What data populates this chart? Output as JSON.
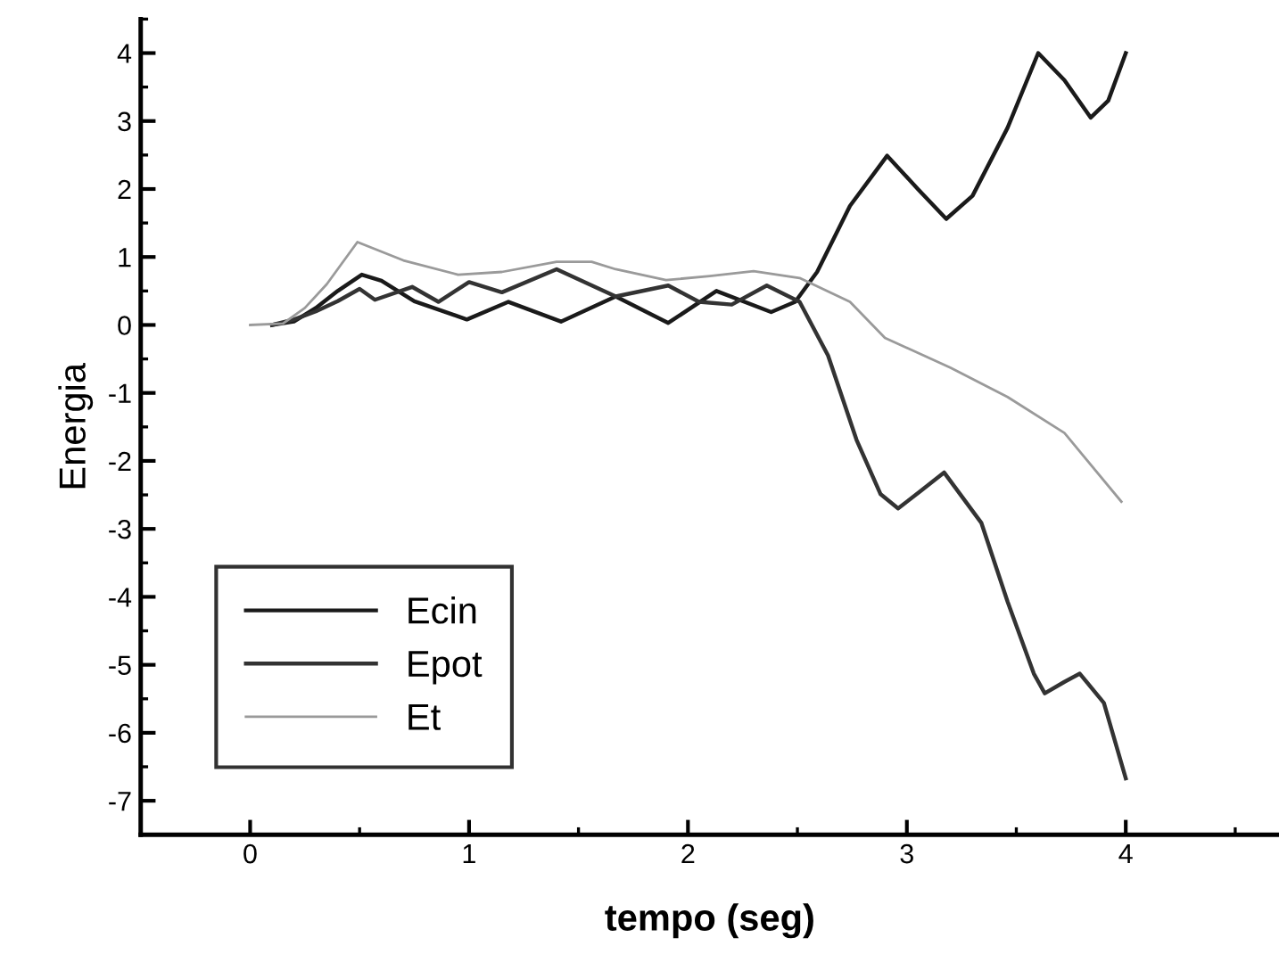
{
  "chart_data": {
    "type": "line",
    "xlabel": "tempo (seg)",
    "ylabel": "Energia",
    "xlim": [
      -0.5,
      4.7
    ],
    "ylim": [
      -7.5,
      4.5
    ],
    "xticks": [
      0,
      1,
      2,
      3,
      4
    ],
    "yticks": [
      -7,
      -6,
      -5,
      -4,
      -3,
      -2,
      -1,
      0,
      1,
      2,
      3,
      4
    ],
    "grid": false,
    "legend": "bottom left",
    "marker": "none",
    "line_style": "solid",
    "series": [
      {
        "name": "Ecin",
        "color": "#1a1a1a",
        "x": [
          0.1,
          0.2,
          0.3,
          0.4,
          0.51,
          0.6,
          0.75,
          0.99,
          1.18,
          1.42,
          1.67,
          1.91,
          2.13,
          2.38,
          2.49,
          2.59,
          2.74,
          2.91,
          3.05,
          3.18,
          3.3,
          3.46,
          3.6,
          3.72,
          3.84,
          3.92,
          4.0
        ],
        "values": [
          0,
          0.05,
          0.25,
          0.5,
          0.74,
          0.65,
          0.35,
          0.08,
          0.34,
          0.05,
          0.42,
          0.03,
          0.5,
          0.19,
          0.34,
          0.78,
          1.75,
          2.49,
          2.0,
          1.56,
          1.9,
          2.9,
          4.0,
          3.6,
          3.05,
          3.3,
          4.0
        ]
      },
      {
        "name": "Epot",
        "color": "#333333",
        "x": [
          0.1,
          0.2,
          0.3,
          0.4,
          0.5,
          0.57,
          0.74,
          0.86,
          1.0,
          1.15,
          1.4,
          1.67,
          1.91,
          2.05,
          2.2,
          2.36,
          2.51,
          2.64,
          2.77,
          2.88,
          2.96,
          3.06,
          3.17,
          3.34,
          3.46,
          3.58,
          3.63,
          3.72,
          3.79,
          3.9,
          4.0
        ],
        "values": [
          0,
          0.08,
          0.2,
          0.35,
          0.53,
          0.37,
          0.56,
          0.34,
          0.63,
          0.48,
          0.82,
          0.42,
          0.58,
          0.34,
          0.3,
          0.58,
          0.34,
          -0.45,
          -1.69,
          -2.49,
          -2.7,
          -2.45,
          -2.17,
          -2.91,
          -4.07,
          -5.13,
          -5.42,
          -5.25,
          -5.13,
          -5.56,
          -6.67
        ]
      },
      {
        "name": "Et",
        "color": "#9a9a9a",
        "x": [
          0,
          0.15,
          0.25,
          0.35,
          0.49,
          0.7,
          0.95,
          1.15,
          1.4,
          1.56,
          1.67,
          1.9,
          2.1,
          2.3,
          2.51,
          2.74,
          2.9,
          3.2,
          3.46,
          3.72,
          3.98
        ],
        "values": [
          0,
          0.02,
          0.25,
          0.6,
          1.22,
          0.95,
          0.74,
          0.78,
          0.93,
          0.93,
          0.82,
          0.66,
          0.72,
          0.79,
          0.69,
          0.34,
          -0.19,
          -0.63,
          -1.06,
          -1.59,
          -2.6
        ]
      }
    ]
  }
}
